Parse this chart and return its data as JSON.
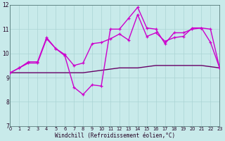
{
  "xlabel": "Windchill (Refroidissement éolien,°C)",
  "bg_color": "#c8eaea",
  "grid_color": "#aad4d4",
  "line_color1": "#cc00cc",
  "line_color2": "#660066",
  "xlim": [
    0,
    23
  ],
  "ylim": [
    7,
    12
  ],
  "yticks": [
    7,
    8,
    9,
    10,
    11,
    12
  ],
  "xticks": [
    0,
    1,
    2,
    3,
    4,
    5,
    6,
    7,
    8,
    9,
    10,
    11,
    12,
    13,
    14,
    15,
    16,
    17,
    18,
    19,
    20,
    21,
    22,
    23
  ],
  "line1_x": [
    0,
    1,
    2,
    3,
    4,
    5,
    6,
    7,
    8,
    9,
    10,
    11,
    12,
    13,
    14,
    15,
    16,
    17,
    18,
    19,
    20,
    21,
    22,
    23
  ],
  "line1_y": [
    9.2,
    9.4,
    9.6,
    9.6,
    10.6,
    10.2,
    9.9,
    8.6,
    8.3,
    8.7,
    8.65,
    11.0,
    11.0,
    11.45,
    11.9,
    11.05,
    11.0,
    10.4,
    10.85,
    10.85,
    11.0,
    11.05,
    11.0,
    9.4
  ],
  "line2_x": [
    0,
    1,
    2,
    3,
    4,
    5,
    6,
    7,
    8,
    9,
    10,
    11,
    12,
    13,
    14,
    15,
    16,
    17,
    18,
    19,
    20,
    21,
    22,
    23
  ],
  "line2_y": [
    9.2,
    9.4,
    9.65,
    9.65,
    10.65,
    10.2,
    9.95,
    9.5,
    9.6,
    10.4,
    10.45,
    10.6,
    10.8,
    10.55,
    11.6,
    10.7,
    10.85,
    10.5,
    10.65,
    10.7,
    11.05,
    11.05,
    10.45,
    9.4
  ],
  "line3_x": [
    0,
    1,
    2,
    3,
    4,
    5,
    6,
    7,
    8,
    9,
    10,
    11,
    12,
    13,
    14,
    15,
    16,
    17,
    18,
    19,
    20,
    21,
    22,
    23
  ],
  "line3_y": [
    9.2,
    9.2,
    9.2,
    9.2,
    9.2,
    9.2,
    9.2,
    9.2,
    9.2,
    9.25,
    9.3,
    9.35,
    9.4,
    9.4,
    9.4,
    9.45,
    9.5,
    9.5,
    9.5,
    9.5,
    9.5,
    9.5,
    9.45,
    9.4
  ]
}
